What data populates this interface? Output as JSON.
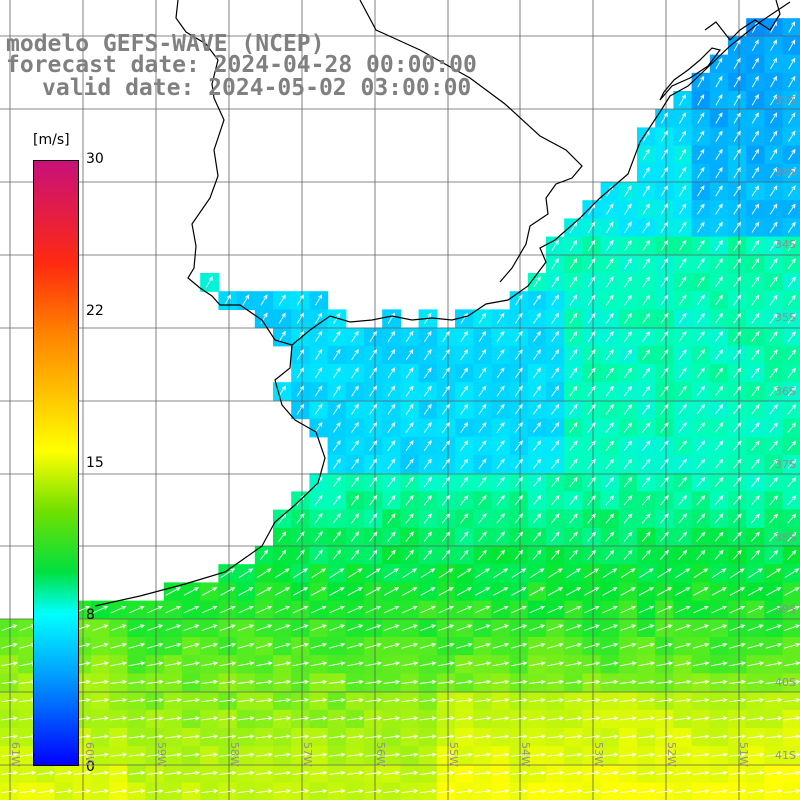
{
  "header": {
    "line1": "modelo GEFS-WAVE (NCEP)",
    "line2": "forecast date: 2024-04-28 00:00:00",
    "line3": "valid date: 2024-05-02 03:00:00"
  },
  "colorbar": {
    "units": "[m/s]",
    "ticks": [
      "30",
      "22",
      "15",
      "8",
      "0"
    ],
    "colors": [
      "#c8107a",
      "#ff2a10",
      "#ff7f00",
      "#ffff00",
      "#00e040",
      "#00ffff",
      "#00a0ff",
      "#0000ff"
    ]
  },
  "axes": {
    "lat_labels": [
      "31S",
      "33S",
      "34S",
      "35S",
      "36S",
      "37S",
      "38S",
      "39S",
      "40S",
      "41S"
    ],
    "lon_labels": [
      "61W",
      "60W",
      "59W",
      "58W",
      "57W",
      "56W",
      "55W",
      "54W",
      "53W",
      "52W",
      "51W"
    ]
  },
  "map": {
    "field": "wind speed",
    "coast_color": "#000000",
    "arrow_color": "#ffffff"
  }
}
